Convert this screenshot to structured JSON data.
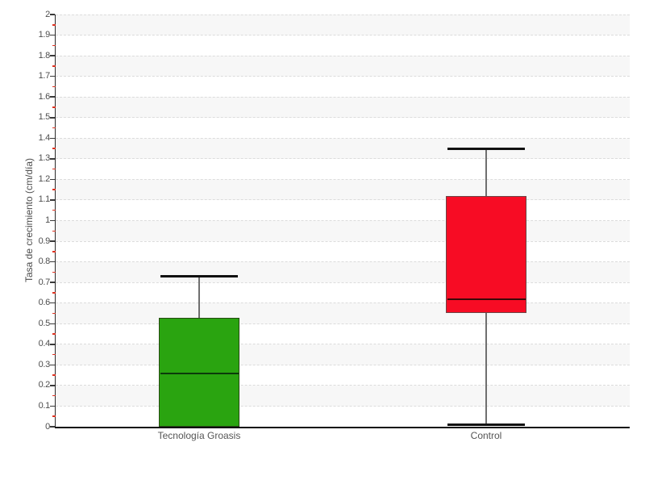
{
  "chart_data": {
    "type": "boxplot",
    "title": "",
    "xlabel": "",
    "ylabel": "Tasa de crecimiento (cm/día)",
    "ylim": [
      0,
      2
    ],
    "ytick_labels": [
      "2",
      "1.9",
      "1.8",
      "1.7",
      "1.6",
      "1.5",
      "1.4",
      "1.3",
      "1.2",
      "1.1",
      "1",
      "0.9",
      "0.8",
      "0.7",
      "0.6",
      "0.5",
      "0.4",
      "0.3",
      "0.2",
      "0.1",
      "0"
    ],
    "minor_tick_step": 0.05,
    "grid": "horizontal dashed lines every 0.1 with alternating light-gray background bands",
    "legend": "none",
    "categories": [
      "Tecnología Groasis",
      "Control"
    ],
    "series": [
      {
        "name": "Tecnología Groasis",
        "min": 0,
        "q1": 0,
        "median": 0.26,
        "q3": 0.53,
        "max": 0.73,
        "fill_color": "#2aa410",
        "edge_color": "#264a12",
        "median_color": "#0b3b0b"
      },
      {
        "name": "Control",
        "min": 0.01,
        "q1": 0.55,
        "median": 0.62,
        "q3": 1.12,
        "max": 1.35,
        "fill_color": "#f70c24",
        "edge_color": "#6b4545",
        "median_color": "#3c0808"
      }
    ],
    "whisker_color": "#6f6f6f",
    "cap_color": "#111111",
    "minor_tick_color": "#dd3322",
    "band_color": "#f7f7f7"
  }
}
